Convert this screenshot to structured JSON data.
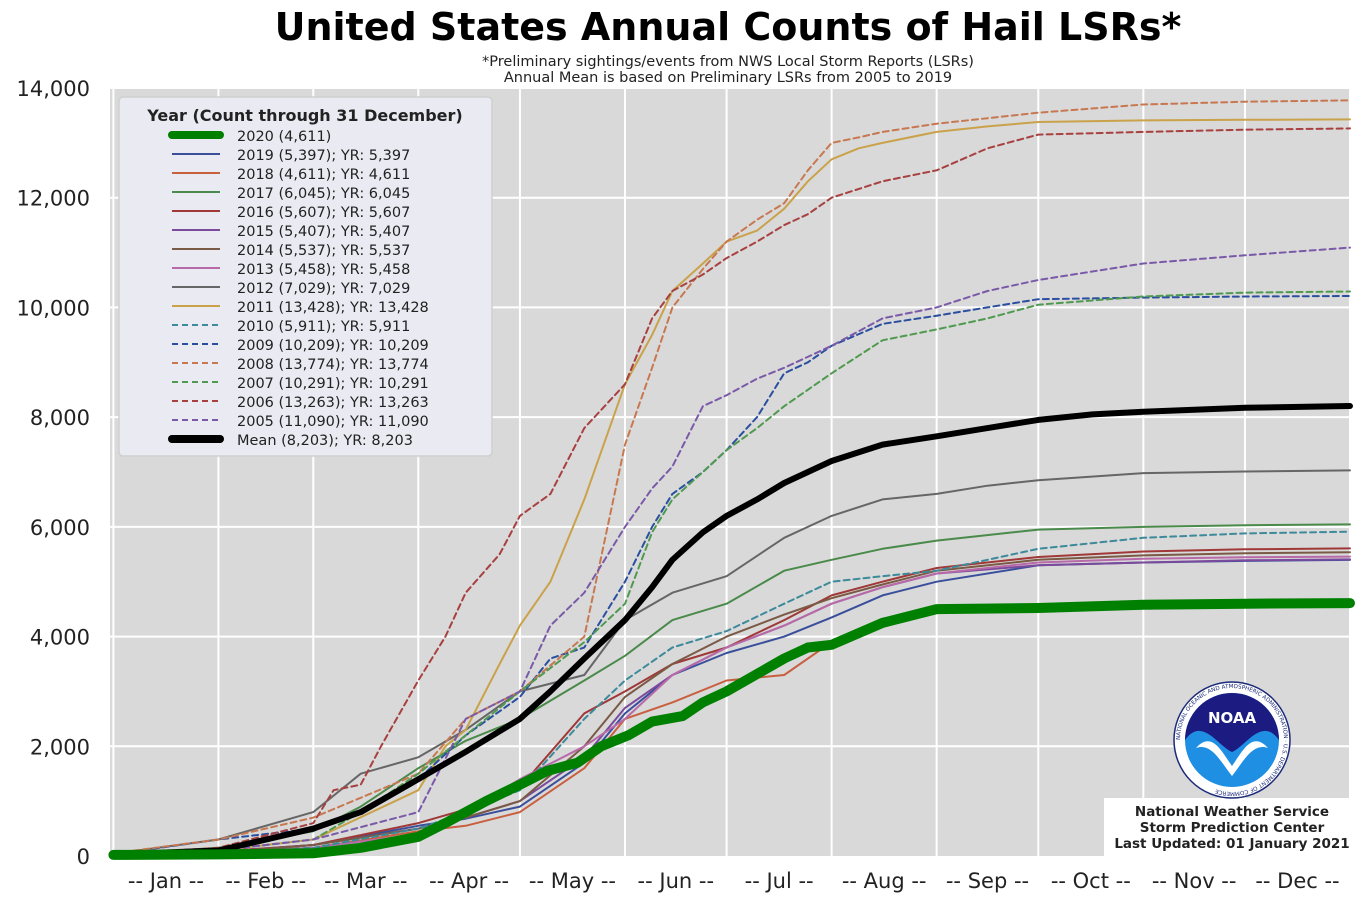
{
  "chart_data": {
    "type": "line",
    "title": "United States Annual Counts of Hail LSRs*",
    "subtitle_lines": [
      "*Preliminary sightings/events from NWS Local Storm Reports (LSRs)",
      "Annual Mean is based on Preliminary LSRs from 2005 to 2019"
    ],
    "xlabel": "",
    "ylabel": "",
    "ylim": [
      0,
      14000
    ],
    "xlim_days": [
      0,
      366
    ],
    "yticks": [
      0,
      2000,
      4000,
      6000,
      8000,
      10000,
      12000,
      14000
    ],
    "ytick_labels": [
      "0",
      "2,000",
      "4,000",
      "6,000",
      "8,000",
      "10,000",
      "12,000",
      "14,000"
    ],
    "month_labels": [
      "-- Jan --",
      "-- Feb --",
      "-- Mar --",
      "-- Apr --",
      "-- May --",
      "-- Jun --",
      "-- Jul --",
      "-- Aug --",
      "-- Sep --",
      "-- Oct --",
      "-- Nov --",
      "-- Dec --"
    ],
    "grid": true,
    "legend": {
      "title": "Year (Count through 31 December)",
      "placement": "top-left"
    },
    "series": [
      {
        "name": "2020 (4,611)",
        "color": "#008000",
        "style": "solid",
        "weight": "heavy",
        "x": [
          1,
          32,
          60,
          74,
          91,
          99,
          105,
          111,
          121,
          129,
          138,
          145,
          153,
          160,
          169,
          175,
          182,
          199,
          206,
          213,
          228,
          244,
          274,
          305,
          335,
          366
        ],
        "y": [
          20,
          30,
          50,
          150,
          350,
          600,
          800,
          1000,
          1300,
          1550,
          1700,
          2000,
          2200,
          2450,
          2550,
          2800,
          3000,
          3600,
          3800,
          3850,
          4250,
          4500,
          4520,
          4580,
          4600,
          4611
        ]
      },
      {
        "name": "2019 (5,397); YR: 5,397",
        "color": "#3a4f9c",
        "style": "solid",
        "weight": "normal",
        "x": [
          1,
          32,
          60,
          91,
          105,
          121,
          140,
          152,
          166,
          182,
          199,
          213,
          228,
          244,
          274,
          305,
          335,
          366
        ],
        "y": [
          20,
          80,
          200,
          550,
          680,
          900,
          1700,
          2600,
          3300,
          3700,
          4000,
          4350,
          4750,
          5000,
          5300,
          5350,
          5380,
          5397
        ]
      },
      {
        "name": "2018 (4,611); YR: 4,611",
        "color": "#c8603f",
        "style": "solid",
        "weight": "normal",
        "x": [
          1,
          32,
          60,
          91,
          105,
          121,
          140,
          152,
          166,
          182,
          199,
          213,
          228,
          244,
          274,
          305,
          335,
          366
        ],
        "y": [
          20,
          60,
          150,
          450,
          550,
          800,
          1600,
          2500,
          2800,
          3200,
          3300,
          3900,
          4250,
          4480,
          4520,
          4580,
          4600,
          4611
        ]
      },
      {
        "name": "2017 (6,045); YR: 6,045",
        "color": "#4a8a4a",
        "style": "solid",
        "weight": "normal",
        "x": [
          1,
          32,
          60,
          74,
          91,
          105,
          121,
          140,
          152,
          166,
          182,
          199,
          213,
          228,
          244,
          274,
          305,
          335,
          366
        ],
        "y": [
          30,
          150,
          450,
          900,
          1600,
          2100,
          2500,
          3200,
          3650,
          4300,
          4600,
          5200,
          5400,
          5600,
          5750,
          5950,
          6000,
          6030,
          6045
        ]
      },
      {
        "name": "2016 (5,607); YR: 5,607",
        "color": "#a03838",
        "style": "solid",
        "weight": "normal",
        "x": [
          1,
          32,
          60,
          91,
          105,
          121,
          140,
          152,
          166,
          182,
          199,
          213,
          228,
          244,
          274,
          305,
          335,
          366
        ],
        "y": [
          20,
          80,
          200,
          600,
          850,
          1250,
          2600,
          3000,
          3500,
          3800,
          4300,
          4750,
          5000,
          5250,
          5450,
          5550,
          5590,
          5607
        ]
      },
      {
        "name": "2015 (5,407); YR: 5,407",
        "color": "#7b4a9c",
        "style": "solid",
        "weight": "normal",
        "x": [
          1,
          32,
          60,
          91,
          105,
          121,
          140,
          152,
          166,
          182,
          199,
          213,
          228,
          244,
          274,
          305,
          335,
          366
        ],
        "y": [
          20,
          60,
          200,
          500,
          700,
          1000,
          1800,
          2700,
          3300,
          3800,
          4200,
          4600,
          4900,
          5150,
          5300,
          5350,
          5390,
          5407
        ]
      },
      {
        "name": "2014 (5,537); YR: 5,537",
        "color": "#7a5a45",
        "style": "solid",
        "weight": "normal",
        "x": [
          1,
          32,
          60,
          91,
          105,
          121,
          140,
          152,
          166,
          182,
          199,
          213,
          228,
          244,
          274,
          305,
          335,
          366
        ],
        "y": [
          20,
          60,
          200,
          500,
          700,
          1000,
          2000,
          2900,
          3500,
          4000,
          4400,
          4700,
          4950,
          5200,
          5400,
          5480,
          5520,
          5537
        ]
      },
      {
        "name": "2013 (5,458); YR: 5,458",
        "color": "#b86aa8",
        "style": "solid",
        "weight": "normal",
        "x": [
          1,
          32,
          60,
          91,
          105,
          121,
          140,
          152,
          166,
          182,
          199,
          213,
          228,
          244,
          274,
          305,
          335,
          366
        ],
        "y": [
          20,
          50,
          150,
          400,
          800,
          1400,
          2000,
          2500,
          3300,
          3800,
          4200,
          4600,
          4900,
          5150,
          5350,
          5420,
          5445,
          5458
        ]
      },
      {
        "name": "2012 (7,029); YR: 7,029",
        "color": "#666666",
        "style": "solid",
        "weight": "normal",
        "x": [
          1,
          32,
          60,
          74,
          91,
          105,
          121,
          140,
          152,
          166,
          182,
          199,
          213,
          228,
          244,
          259,
          274,
          305,
          335,
          366
        ],
        "y": [
          40,
          300,
          800,
          1500,
          1800,
          2300,
          3000,
          3300,
          4300,
          4800,
          5100,
          5800,
          6200,
          6500,
          6600,
          6750,
          6850,
          6980,
          7010,
          7029
        ]
      },
      {
        "name": "2011 (13,428); YR: 13,428",
        "color": "#c9a24a",
        "style": "solid",
        "weight": "normal",
        "x": [
          1,
          32,
          60,
          91,
          99,
          105,
          115,
          121,
          130,
          140,
          152,
          160,
          166,
          175,
          182,
          191,
          199,
          206,
          213,
          221,
          228,
          244,
          259,
          274,
          305,
          335,
          366
        ],
        "y": [
          30,
          100,
          300,
          1200,
          2000,
          2300,
          3500,
          4200,
          5000,
          6500,
          8600,
          9500,
          10300,
          10800,
          11200,
          11400,
          11800,
          12300,
          12700,
          12900,
          13000,
          13200,
          13300,
          13380,
          13410,
          13420,
          13428
        ]
      },
      {
        "name": "2010 (5,911); YR: 5,911",
        "color": "#3d8a9a",
        "style": "dashed",
        "weight": "normal",
        "x": [
          1,
          32,
          60,
          91,
          105,
          121,
          140,
          152,
          166,
          182,
          199,
          213,
          228,
          244,
          259,
          274,
          305,
          335,
          366
        ],
        "y": [
          20,
          50,
          150,
          500,
          800,
          1200,
          2500,
          3200,
          3800,
          4100,
          4600,
          5000,
          5100,
          5200,
          5400,
          5600,
          5800,
          5880,
          5911
        ]
      },
      {
        "name": "2009 (10,209); YR: 10,209",
        "color": "#2a4fa0",
        "style": "dashed",
        "weight": "normal",
        "x": [
          1,
          32,
          60,
          74,
          91,
          105,
          121,
          130,
          140,
          152,
          160,
          166,
          175,
          182,
          191,
          199,
          206,
          213,
          228,
          244,
          259,
          274,
          305,
          335,
          366
        ],
        "y": [
          30,
          300,
          500,
          800,
          1400,
          2200,
          2900,
          3600,
          3800,
          5000,
          6000,
          6600,
          7000,
          7400,
          8000,
          8800,
          9000,
          9300,
          9700,
          9850,
          10000,
          10150,
          10180,
          10200,
          10209
        ]
      },
      {
        "name": "2008 (13,774); YR: 13,774",
        "color": "#c87850",
        "style": "dashed",
        "weight": "normal",
        "x": [
          1,
          32,
          60,
          91,
          105,
          121,
          140,
          152,
          160,
          166,
          175,
          182,
          191,
          199,
          206,
          213,
          221,
          228,
          244,
          259,
          274,
          305,
          335,
          366
        ],
        "y": [
          50,
          300,
          700,
          1500,
          2500,
          3000,
          4000,
          7500,
          8900,
          10000,
          10700,
          11200,
          11600,
          11900,
          12500,
          13000,
          13100,
          13200,
          13350,
          13450,
          13550,
          13700,
          13750,
          13774
        ]
      },
      {
        "name": "2007 (10,291); YR: 10,291",
        "color": "#4f9a4f",
        "style": "dashed",
        "weight": "normal",
        "x": [
          1,
          32,
          60,
          74,
          91,
          105,
          121,
          140,
          152,
          160,
          166,
          175,
          182,
          191,
          199,
          213,
          228,
          244,
          259,
          274,
          305,
          335,
          366
        ],
        "y": [
          20,
          100,
          300,
          800,
          1500,
          2200,
          3000,
          3900,
          4600,
          5900,
          6500,
          7000,
          7400,
          7800,
          8200,
          8800,
          9400,
          9600,
          9800,
          10050,
          10200,
          10270,
          10291
        ]
      },
      {
        "name": "2006 (13,263); YR: 13,263",
        "color": "#a84040",
        "style": "dashed",
        "weight": "normal",
        "x": [
          1,
          32,
          60,
          66,
          74,
          80,
          91,
          99,
          105,
          115,
          121,
          130,
          140,
          152,
          160,
          166,
          175,
          182,
          191,
          199,
          206,
          213,
          228,
          244,
          259,
          274,
          305,
          335,
          366
        ],
        "y": [
          30,
          150,
          600,
          1200,
          1300,
          2000,
          3200,
          4000,
          4800,
          5500,
          6200,
          6600,
          7800,
          8600,
          9800,
          10300,
          10600,
          10900,
          11200,
          11500,
          11700,
          12000,
          12300,
          12500,
          12900,
          13150,
          13200,
          13240,
          13263
        ]
      },
      {
        "name": "2005 (11,090); YR: 11,090",
        "color": "#7a5aa8",
        "style": "dashed",
        "weight": "normal",
        "x": [
          1,
          32,
          60,
          91,
          105,
          121,
          130,
          140,
          152,
          160,
          166,
          175,
          182,
          191,
          199,
          213,
          228,
          244,
          259,
          274,
          305,
          335,
          366
        ],
        "y": [
          20,
          100,
          300,
          800,
          2500,
          3000,
          4200,
          4800,
          6000,
          6700,
          7100,
          8200,
          8400,
          8700,
          8900,
          9300,
          9800,
          10000,
          10300,
          10500,
          10800,
          10950,
          11090
        ]
      },
      {
        "name": "Mean (8,203); YR: 8,203",
        "color": "#000000",
        "style": "solid",
        "weight": "heavy",
        "x": [
          1,
          32,
          60,
          74,
          91,
          105,
          121,
          130,
          140,
          152,
          160,
          166,
          175,
          182,
          191,
          199,
          206,
          213,
          228,
          244,
          259,
          274,
          290,
          305,
          335,
          366
        ],
        "y": [
          30,
          100,
          500,
          800,
          1400,
          1900,
          2500,
          3000,
          3600,
          4300,
          4900,
          5400,
          5900,
          6200,
          6500,
          6800,
          7000,
          7200,
          7500,
          7650,
          7800,
          7950,
          8050,
          8100,
          8170,
          8203
        ]
      }
    ]
  },
  "credits": {
    "logo_text": "NOAA",
    "logo_ring_text": "NATIONAL OCEANIC AND ATMOSPHERIC ADMINISTRATION · U.S. DEPARTMENT OF COMMERCE",
    "line1": "National Weather Service",
    "line2": "Storm Prediction Center",
    "line3": "Last Updated: 01 January 2021"
  },
  "colors": {
    "plot_background": "#d9d9d9",
    "grid": "#ffffff",
    "legend_background": "#eaeaf2"
  }
}
